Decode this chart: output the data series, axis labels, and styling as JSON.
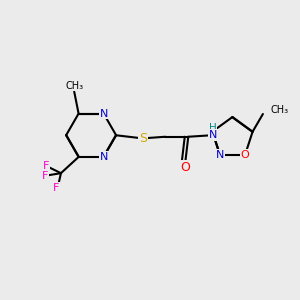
{
  "background_color": "#ebebeb",
  "bond_color": "#000000",
  "atom_colors": {
    "N": "#0000cc",
    "O": "#ff0000",
    "S": "#ccaa00",
    "F": "#ff00cc",
    "H": "#008888",
    "C": "#000000"
  }
}
